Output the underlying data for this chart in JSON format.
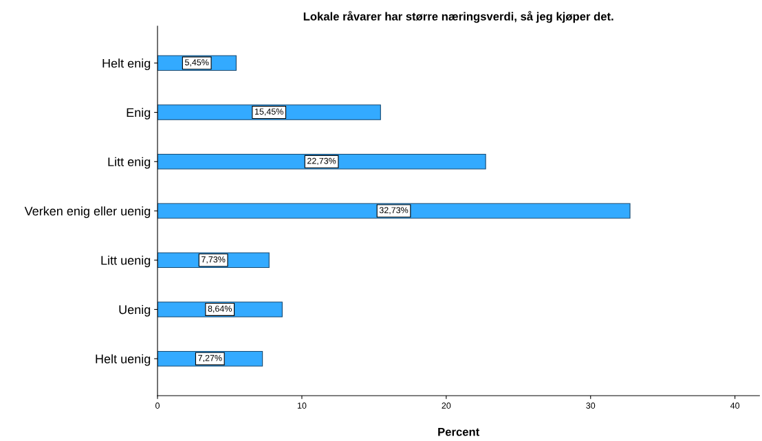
{
  "chart_data": {
    "type": "bar",
    "orientation": "horizontal",
    "title": "Lokale råvarer har større næringsverdi, så jeg kjøper det.",
    "xlabel": "Percent",
    "categories": [
      "Helt enig",
      "Enig",
      "Litt enig",
      "Verken enig eller uenig",
      "Litt uenig",
      "Uenig",
      "Helt uenig"
    ],
    "values": [
      5.45,
      15.45,
      22.73,
      32.73,
      7.73,
      8.64,
      7.27
    ],
    "value_labels": [
      "5,45%",
      "15,45%",
      "22,73%",
      "32,73%",
      "7,73%",
      "8,64%",
      "7,27%"
    ],
    "color": "#33aaff",
    "xlim": [
      0,
      41.7
    ],
    "xticks": [
      0,
      10,
      20,
      30,
      40
    ],
    "grid": false,
    "legend": false
  }
}
